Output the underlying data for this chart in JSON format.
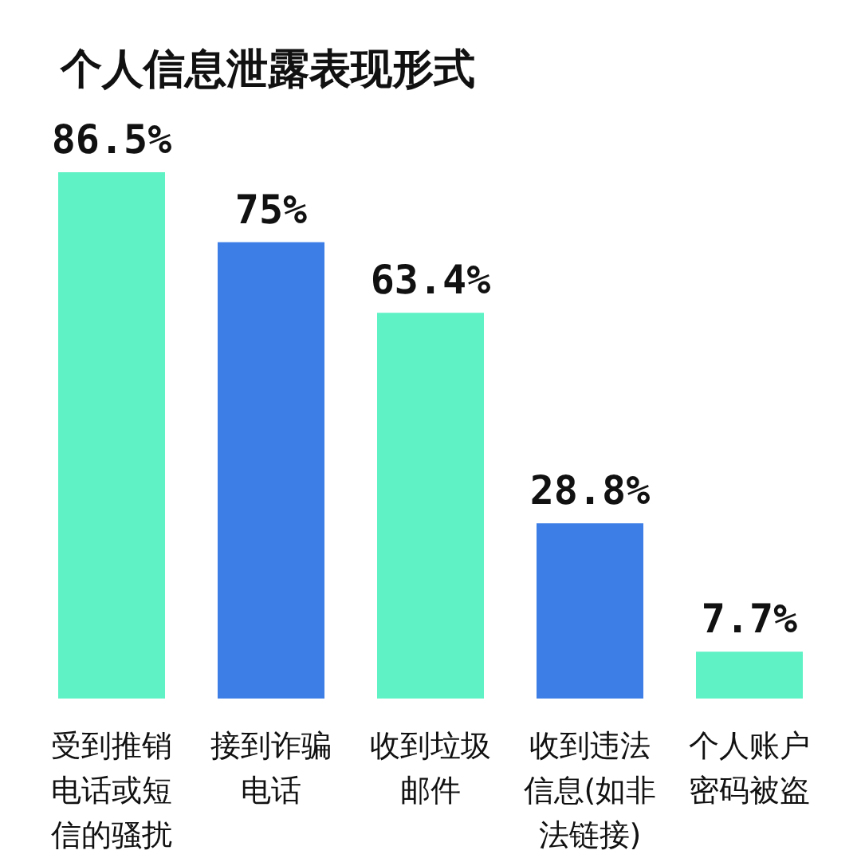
{
  "chart_data": {
    "type": "bar",
    "title": "个人信息泄露表现形式",
    "categories": [
      "受到推销电话或短信的骚扰",
      "接到诈骗电话",
      "收到垃圾邮件",
      "收到违法信息(如非法链接)",
      "个人账户密码被盗"
    ],
    "values": [
      86.5,
      75,
      63.4,
      28.8,
      7.7
    ],
    "colors": [
      "#5ef2c4",
      "#3d7ee6",
      "#5ef2c4",
      "#3d7ee6",
      "#5ef2c4"
    ],
    "value_labels": [
      "86.5%",
      "75%",
      "63.4%",
      "28.8%",
      "7.7%"
    ]
  }
}
